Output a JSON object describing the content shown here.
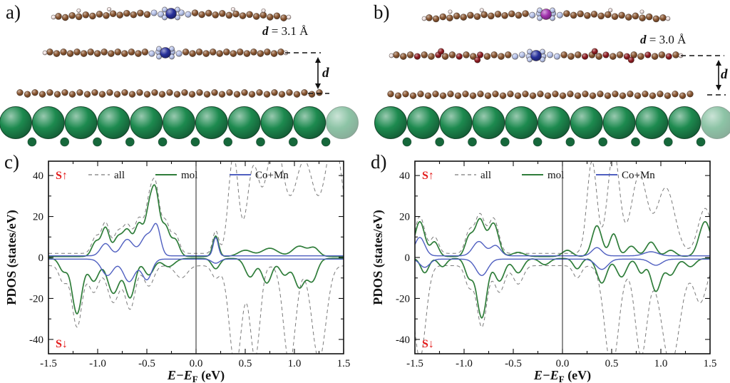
{
  "panel_labels": {
    "a": "a)",
    "b": "b)",
    "c": "c)",
    "d": "d)"
  },
  "structures": {
    "a": {
      "distance_symbol": "d",
      "distance_value": "= 3.1 Å",
      "arrow_label": "d"
    },
    "b": {
      "distance_symbol": "d",
      "distance_value": "= 3.0 Å",
      "arrow_label": "d"
    },
    "atom_colors": {
      "carbon": "#8a5732",
      "hydrogen": "#f3e6e6",
      "nitrogen": "#b7c3ea",
      "metal_blue": "#27309a",
      "metal_purple": "#a233ae",
      "oxygen_red": "#8e1c22",
      "substrate_green": "#1d8a4f"
    }
  },
  "chart_data": [
    {
      "type": "line",
      "panel": "c",
      "xlabel": {
        "main": "E−E",
        "sub": "F",
        "unit": " (eV)"
      },
      "ylabel": "PDOS (states/eV)",
      "xlim": [
        -1.5,
        1.5
      ],
      "ylim": [
        -47,
        47
      ],
      "xticks": [
        -1.5,
        -1.0,
        -0.5,
        0.0,
        0.5,
        1.0,
        1.5
      ],
      "xtick_labels": [
        "-1.5",
        "-1.0",
        "-0.5",
        "0.0",
        "0.5",
        "1.0",
        "1.5"
      ],
      "yticks": [
        40,
        20,
        0,
        -20,
        -40
      ],
      "ytick_labels": [
        "40",
        "20",
        "0",
        "-20",
        "-40"
      ],
      "fermi_level_x": 0.0,
      "spin_up_label": "S↑",
      "spin_down_label": "S↓",
      "grid": false,
      "legend_position": "top-inside",
      "legend": [
        {
          "label": "all",
          "color": "#7a7a7a",
          "dash": true
        },
        {
          "label": "mol",
          "color": "#2f7d3a",
          "dash": false
        },
        {
          "label": "Co+Mn",
          "color": "#4f5fc0",
          "dash": false
        }
      ],
      "series_representation": "gaussian peaks [center_eV, height_states_per_eV, sigma_eV] plus flat baseline",
      "series": [
        {
          "name": "all-spin-up",
          "legend": "all",
          "color": "#7a7a7a",
          "dash": true,
          "width": 1.0,
          "base": 2,
          "peaks": [
            [
              -1.02,
              8,
              0.04
            ],
            [
              -0.92,
              15,
              0.04
            ],
            [
              -0.8,
              9,
              0.04
            ],
            [
              -0.7,
              14,
              0.05
            ],
            [
              -0.58,
              16,
              0.04
            ],
            [
              -0.48,
              22,
              0.04
            ],
            [
              -0.41,
              30,
              0.04
            ],
            [
              -0.31,
              15,
              0.04
            ],
            [
              -0.21,
              9,
              0.04
            ],
            [
              0.2,
              11,
              0.03
            ],
            [
              0.38,
              48,
              0.05
            ],
            [
              0.58,
              40,
              0.06
            ],
            [
              0.8,
              55,
              0.09
            ],
            [
              1.1,
              45,
              0.1
            ],
            [
              1.4,
              55,
              0.09
            ]
          ]
        },
        {
          "name": "all-spin-down",
          "legend": "all",
          "color": "#7a7a7a",
          "dash": true,
          "width": 1.0,
          "base": -4,
          "peaks": [
            [
              -1.35,
              -8,
              0.04
            ],
            [
              -1.21,
              -30,
              0.05
            ],
            [
              -1.04,
              -13,
              0.05
            ],
            [
              -0.84,
              -18,
              0.06
            ],
            [
              -0.67,
              -21,
              0.05
            ],
            [
              -0.48,
              -10,
              0.05
            ],
            [
              -0.15,
              -6,
              0.06
            ],
            [
              0.2,
              -6,
              0.04
            ],
            [
              0.4,
              -50,
              0.06
            ],
            [
              0.6,
              -45,
              0.05
            ],
            [
              0.95,
              -48,
              0.06
            ],
            [
              1.25,
              -46,
              0.07
            ]
          ]
        },
        {
          "name": "mol-spin-up",
          "legend": "mol",
          "color": "#2f7d3a",
          "dash": false,
          "width": 1.7,
          "base": 0.5,
          "peaks": [
            [
              -1.02,
              7,
              0.04
            ],
            [
              -0.92,
              14,
              0.04
            ],
            [
              -0.8,
              8,
              0.04
            ],
            [
              -0.7,
              13,
              0.05
            ],
            [
              -0.58,
              15,
              0.04
            ],
            [
              -0.48,
              20,
              0.04
            ],
            [
              -0.41,
              29,
              0.04
            ],
            [
              -0.31,
              14,
              0.04
            ],
            [
              -0.21,
              8,
              0.04
            ],
            [
              0.2,
              10,
              0.03
            ],
            [
              0.5,
              3,
              0.07
            ],
            [
              0.75,
              4,
              0.08
            ],
            [
              1.05,
              5,
              0.07
            ],
            [
              1.2,
              4,
              0.05
            ]
          ]
        },
        {
          "name": "mol-spin-down",
          "legend": "mol",
          "color": "#2f7d3a",
          "dash": false,
          "width": 1.7,
          "base": -0.5,
          "peaks": [
            [
              -1.35,
              -6,
              0.04
            ],
            [
              -1.21,
              -27,
              0.05
            ],
            [
              -1.04,
              -11,
              0.05
            ],
            [
              -0.84,
              -17,
              0.06
            ],
            [
              -0.67,
              -19,
              0.05
            ],
            [
              -0.48,
              -8,
              0.05
            ],
            [
              -0.28,
              -4,
              0.06
            ],
            [
              0.2,
              -5,
              0.04
            ],
            [
              0.55,
              -9,
              0.05
            ],
            [
              0.72,
              -12,
              0.05
            ],
            [
              0.9,
              -8,
              0.05
            ],
            [
              1.05,
              -14,
              0.05
            ],
            [
              1.18,
              -11,
              0.05
            ]
          ]
        },
        {
          "name": "comn-spin-up",
          "legend": "Co+Mn",
          "color": "#4f5fc0",
          "dash": false,
          "width": 1.4,
          "base": 0.8,
          "peaks": [
            [
              -0.92,
              6,
              0.05
            ],
            [
              -0.7,
              8,
              0.06
            ],
            [
              -0.5,
              10,
              0.06
            ],
            [
              -0.4,
              13,
              0.04
            ],
            [
              0.2,
              9,
              0.025
            ]
          ]
        },
        {
          "name": "comn-spin-down",
          "legend": "Co+Mn",
          "color": "#4f5fc0",
          "dash": false,
          "width": 1.4,
          "base": -0.8,
          "peaks": [
            [
              -0.9,
              -8,
              0.06
            ],
            [
              -0.68,
              -11,
              0.06
            ],
            [
              -0.5,
              -10,
              0.05
            ],
            [
              0.2,
              -2,
              0.04
            ]
          ]
        }
      ]
    },
    {
      "type": "line",
      "panel": "d",
      "xlabel": {
        "main": "E−E",
        "sub": "F",
        "unit": " (eV)"
      },
      "ylabel": "PDOS (states/eV)",
      "xlim": [
        -1.5,
        1.5
      ],
      "ylim": [
        -47,
        47
      ],
      "xticks": [
        -1.5,
        -1.0,
        -0.5,
        0.0,
        0.5,
        1.0,
        1.5
      ],
      "xtick_labels": [
        "-1.5",
        "-1.0",
        "-0.5",
        "0.0",
        "0.5",
        "1.0",
        "1.5"
      ],
      "yticks": [
        40,
        20,
        0,
        -20,
        -40
      ],
      "ytick_labels": [
        "40",
        "20",
        "0",
        "-20",
        "-40"
      ],
      "fermi_level_x": 0.0,
      "spin_up_label": "S↑",
      "spin_down_label": "S↓",
      "grid": false,
      "legend_position": "top-inside",
      "legend": [
        {
          "label": "all",
          "color": "#7a7a7a",
          "dash": true
        },
        {
          "label": "mol",
          "color": "#2f7d3a",
          "dash": false
        },
        {
          "label": "Co+Mn",
          "color": "#4f5fc0",
          "dash": false
        }
      ],
      "series_representation": "gaussian peaks [center_eV, height_states_per_eV, sigma_eV] plus flat baseline",
      "series": [
        {
          "name": "all-spin-up",
          "legend": "all",
          "color": "#7a7a7a",
          "dash": true,
          "width": 1.0,
          "base": 2,
          "peaks": [
            [
              -1.45,
              18,
              0.05
            ],
            [
              -1.3,
              8,
              0.04
            ],
            [
              -0.95,
              10,
              0.04
            ],
            [
              -0.84,
              19,
              0.05
            ],
            [
              -0.7,
              17,
              0.05
            ],
            [
              0.3,
              45,
              0.05
            ],
            [
              0.52,
              50,
              0.06
            ],
            [
              0.78,
              38,
              0.08
            ],
            [
              1.05,
              32,
              0.09
            ],
            [
              1.45,
              22,
              0.07
            ]
          ]
        },
        {
          "name": "all-spin-down",
          "legend": "all",
          "color": "#7a7a7a",
          "dash": true,
          "width": 1.0,
          "base": -4,
          "peaks": [
            [
              -1.45,
              -45,
              0.06
            ],
            [
              -0.95,
              -10,
              0.04
            ],
            [
              -0.82,
              -30,
              0.05
            ],
            [
              -0.64,
              -13,
              0.05
            ],
            [
              -0.45,
              -9,
              0.05
            ],
            [
              0.15,
              -6,
              0.04
            ],
            [
              0.5,
              -50,
              0.07
            ],
            [
              0.8,
              -44,
              0.06
            ],
            [
              1.1,
              -48,
              0.09
            ],
            [
              1.4,
              -18,
              0.06
            ]
          ]
        },
        {
          "name": "mol-spin-up",
          "legend": "mol",
          "color": "#2f7d3a",
          "dash": false,
          "width": 1.7,
          "base": 0.5,
          "peaks": [
            [
              -1.45,
              17,
              0.05
            ],
            [
              -1.3,
              7,
              0.04
            ],
            [
              -0.95,
              9,
              0.04
            ],
            [
              -0.84,
              18,
              0.05
            ],
            [
              -0.7,
              16,
              0.05
            ],
            [
              -0.45,
              2,
              0.06
            ],
            [
              0.05,
              3,
              0.05
            ],
            [
              0.35,
              15,
              0.05
            ],
            [
              0.52,
              11,
              0.04
            ],
            [
              0.7,
              5,
              0.05
            ],
            [
              0.9,
              7,
              0.05
            ],
            [
              1.1,
              3,
              0.05
            ],
            [
              1.45,
              17,
              0.06
            ]
          ]
        },
        {
          "name": "mol-spin-down",
          "legend": "mol",
          "color": "#2f7d3a",
          "dash": false,
          "width": 1.7,
          "base": -0.5,
          "peaks": [
            [
              -1.4,
              -7,
              0.04
            ],
            [
              -1.22,
              -4,
              0.04
            ],
            [
              -0.95,
              -9,
              0.04
            ],
            [
              -0.82,
              -29,
              0.05
            ],
            [
              -0.64,
              -11,
              0.05
            ],
            [
              -0.45,
              -7,
              0.05
            ],
            [
              -0.18,
              -3,
              0.05
            ],
            [
              0.15,
              -5,
              0.04
            ],
            [
              0.4,
              -12,
              0.05
            ],
            [
              0.6,
              -9,
              0.05
            ],
            [
              0.8,
              -7,
              0.04
            ],
            [
              0.95,
              -16,
              0.05
            ],
            [
              1.1,
              -8,
              0.05
            ],
            [
              1.3,
              -4,
              0.05
            ]
          ]
        },
        {
          "name": "comn-spin-up",
          "legend": "Co+Mn",
          "color": "#4f5fc0",
          "dash": false,
          "width": 1.4,
          "base": 0.8,
          "peaks": [
            [
              -1.45,
              9,
              0.05
            ],
            [
              -0.85,
              7,
              0.06
            ],
            [
              -0.68,
              5,
              0.05
            ],
            [
              0.35,
              4,
              0.05
            ],
            [
              0.9,
              2,
              0.07
            ]
          ]
        },
        {
          "name": "comn-spin-down",
          "legend": "Co+Mn",
          "color": "#4f5fc0",
          "dash": false,
          "width": 1.4,
          "base": -0.8,
          "peaks": [
            [
              -1.4,
              -4,
              0.05
            ],
            [
              -0.82,
              -8,
              0.06
            ],
            [
              0.4,
              -5,
              0.06
            ],
            [
              0.95,
              -3,
              0.06
            ]
          ]
        }
      ]
    }
  ]
}
